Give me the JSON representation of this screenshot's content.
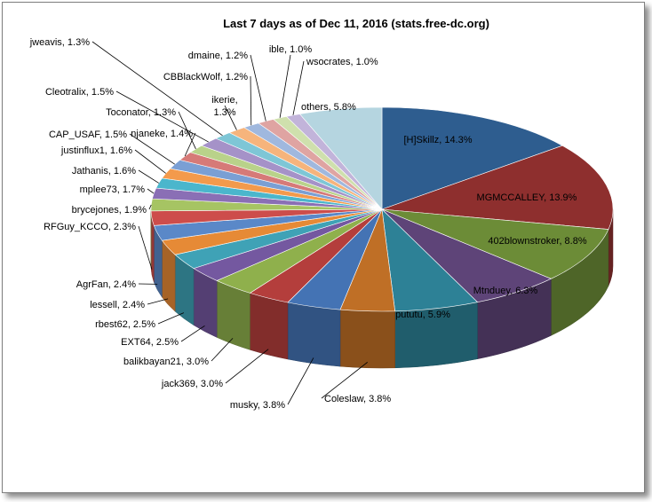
{
  "chart_data": {
    "type": "pie",
    "title": "Last 7 days as of Dec 11, 2016 (stats.free-dc.org)",
    "slices": [
      {
        "label": "[H]Skillz, 14.3%",
        "value": 14.3,
        "color": "#2e5d8f"
      },
      {
        "label": "MGMCCALLEY,   13.9%",
        "value": 13.9,
        "color": "#8e2f2e"
      },
      {
        "label": "402blownstroker, 8.8%",
        "value": 8.8,
        "color": "#6c8c37"
      },
      {
        "label": "Mtnduey,  6.3%",
        "value": 6.3,
        "color": "#5e4478"
      },
      {
        "label": "pututu, 5.9%",
        "value": 5.9,
        "color": "#2d8196"
      },
      {
        "label": "Coleslaw, 3.8%",
        "value": 3.8,
        "color": "#bf6f26"
      },
      {
        "label": "musky, 3.8%",
        "value": 3.8,
        "color": "#4473b4"
      },
      {
        "label": "jack369, 3.0%",
        "value": 3.0,
        "color": "#b43e3c"
      },
      {
        "label": "balikbayan21, 3.0%",
        "value": 3.0,
        "color": "#8fb04c"
      },
      {
        "label": "EXT64,  2.5%",
        "value": 2.5,
        "color": "#7458a0"
      },
      {
        "label": "rbest62, 2.5%",
        "value": 2.5,
        "color": "#3fa2b6"
      },
      {
        "label": "lessell, 2.4%",
        "value": 2.4,
        "color": "#e68a36"
      },
      {
        "label": "AgrFan, 2.4%",
        "value": 2.4,
        "color": "#5a88c8"
      },
      {
        "label": "RFGuy_KCCO, 2.3%",
        "value": 2.3,
        "color": "#cd4d4b"
      },
      {
        "label": "brycejones, 1.9%",
        "value": 1.9,
        "color": "#a6c463"
      },
      {
        "label": "mplee73, 1.7%",
        "value": 1.7,
        "color": "#8a6fb5"
      },
      {
        "label": "Jathanis, 1.6%",
        "value": 1.6,
        "color": "#4bb6cc"
      },
      {
        "label": "justinflux1, 1.6%",
        "value": 1.6,
        "color": "#f39a4c"
      },
      {
        "label": "CAP_USAF,  1.5%",
        "value": 1.5,
        "color": "#7a9fd4"
      },
      {
        "label": "njaneke, 1.4%",
        "value": 1.4,
        "color": "#d67a78"
      },
      {
        "label": "Toconator, 1.3%",
        "value": 1.3,
        "color": "#b9d28a"
      },
      {
        "label": "Cleotralix, 1.5%",
        "value": 1.5,
        "color": "#a592c8"
      },
      {
        "label": "jweavis, 1.3%",
        "value": 1.3,
        "color": "#7ec6d6"
      },
      {
        "label": "ikerie, 1.3%",
        "value": 1.3,
        "color": "#f6b47c"
      },
      {
        "label": "CBBlackWolf, 1.2%",
        "value": 1.2,
        "color": "#a0b8de"
      },
      {
        "label": "dmaine, 1.2%",
        "value": 1.2,
        "color": "#dfa4a2"
      },
      {
        "label": "ible, 1.0%",
        "value": 1.0,
        "color": "#cfe0ad"
      },
      {
        "label": "wsocrates, 1.0%",
        "value": 1.0,
        "color": "#c2b4da"
      },
      {
        "label": "others, 5.8%",
        "value": 5.8,
        "color": "#b5d5e0"
      }
    ]
  }
}
